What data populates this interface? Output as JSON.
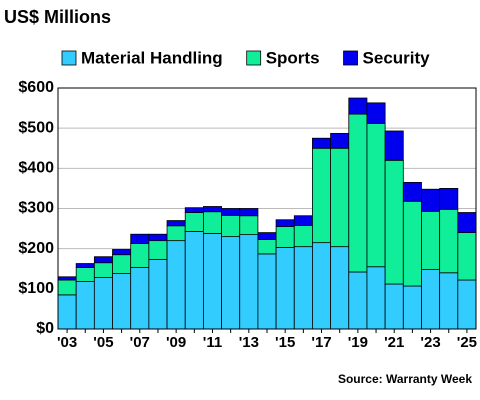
{
  "chart_data": {
    "type": "stacked-bar",
    "title": "US$ Millions",
    "source": "Source: Warranty Week",
    "categories": [
      "'03",
      null,
      "'05",
      null,
      "'07",
      null,
      "'09",
      null,
      "'11",
      null,
      "'13",
      null,
      "'15",
      null,
      "'17",
      null,
      "'19",
      null,
      "'21",
      null,
      "'23",
      null,
      "'25"
    ],
    "series": [
      {
        "name": "Material Handling",
        "color": "#33ccff",
        "values": [
          85,
          118,
          128,
          138,
          153,
          173,
          220,
          243,
          238,
          230,
          235,
          187,
          203,
          205,
          215,
          205,
          142,
          155,
          112,
          107,
          148,
          140,
          122
        ]
      },
      {
        "name": "Sports",
        "color": "#11ee99",
        "values": [
          37,
          35,
          37,
          47,
          60,
          47,
          37,
          47,
          54,
          53,
          47,
          36,
          52,
          53,
          235,
          245,
          393,
          357,
          308,
          211,
          145,
          158,
          118
        ]
      },
      {
        "name": "Security",
        "color": "#0000ee",
        "values": [
          8,
          10,
          15,
          13,
          23,
          16,
          13,
          12,
          13,
          17,
          18,
          17,
          17,
          24,
          25,
          37,
          40,
          51,
          73,
          47,
          55,
          52,
          50
        ]
      }
    ],
    "ylim": [
      0,
      600
    ],
    "yticks": [
      {
        "value": 0,
        "label": "$0"
      },
      {
        "value": 100,
        "label": "$100"
      },
      {
        "value": 200,
        "label": "$200"
      },
      {
        "value": 300,
        "label": "$300"
      },
      {
        "value": 400,
        "label": "$400"
      },
      {
        "value": 500,
        "label": "$500"
      },
      {
        "value": 600,
        "label": "$600"
      }
    ],
    "grid": true
  }
}
